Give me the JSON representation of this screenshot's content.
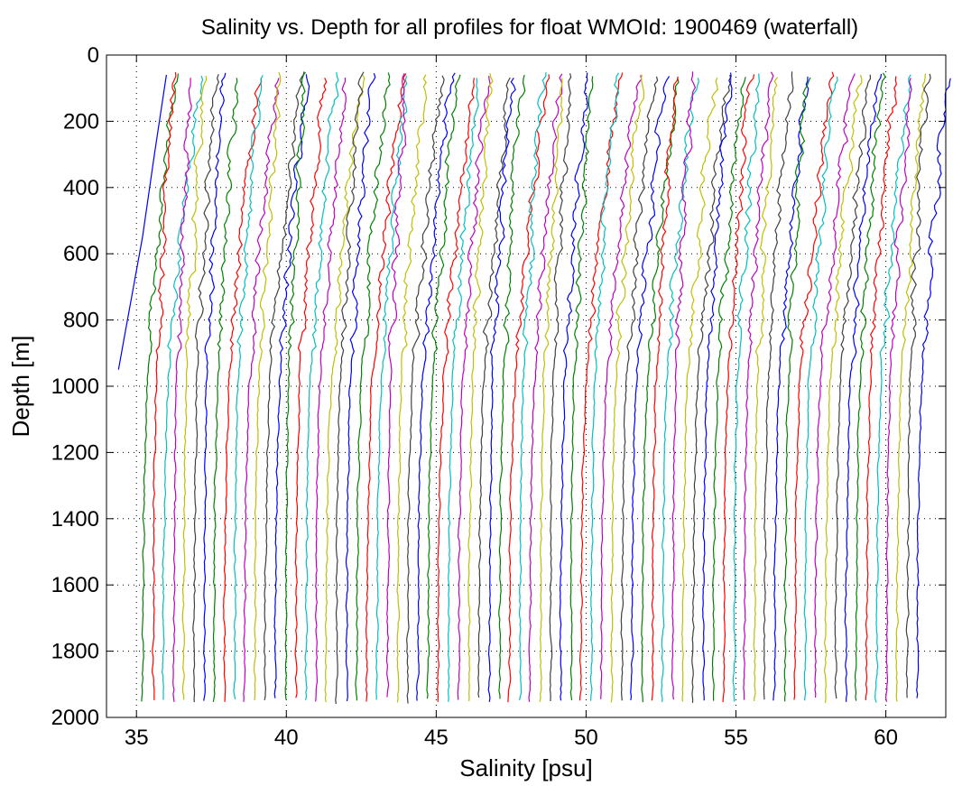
{
  "chart_data": {
    "type": "line",
    "title": "Salinity vs. Depth for all profiles for float WMOId: 1900469 (waterfall)",
    "xlabel": "Salinity [psu]",
    "ylabel": "Depth [m]",
    "xlim": [
      34,
      62
    ],
    "ylim": [
      0,
      2000
    ],
    "y_reversed": true,
    "x_ticks": [
      35,
      40,
      45,
      50,
      55,
      60
    ],
    "y_ticks": [
      0,
      200,
      400,
      600,
      800,
      1000,
      1200,
      1400,
      1600,
      1800,
      2000
    ],
    "grid": true,
    "grid_style": "dotted",
    "legend": "none",
    "waterfall": {
      "profile_count": 78,
      "first_profile_deep_salinity": 34.9,
      "offset_per_profile_psu": 0.34,
      "profile_top_depth": 60,
      "profile_bottom_depth": 1960
    },
    "color_cycle": [
      "#0000ff",
      "#008000",
      "#ff0000",
      "#00bfbf",
      "#bf00bf",
      "#bfbf00",
      "#404040"
    ],
    "representative_profile": {
      "description_depths": [
        60,
        200,
        400,
        600,
        800,
        1000,
        1200,
        1400,
        1600,
        1800,
        1960
      ],
      "salinity_anomaly": [
        1.2,
        0.95,
        0.7,
        0.5,
        0.3,
        0.12,
        0.05,
        0.0,
        -0.02,
        -0.03,
        -0.04
      ]
    },
    "series": [
      {
        "x": [
          36.0,
          35.6,
          35.2,
          34.9,
          34.6,
          34.4
        ],
        "y": [
          60,
          300,
          550,
          700,
          850,
          950
        ]
      }
    ]
  }
}
